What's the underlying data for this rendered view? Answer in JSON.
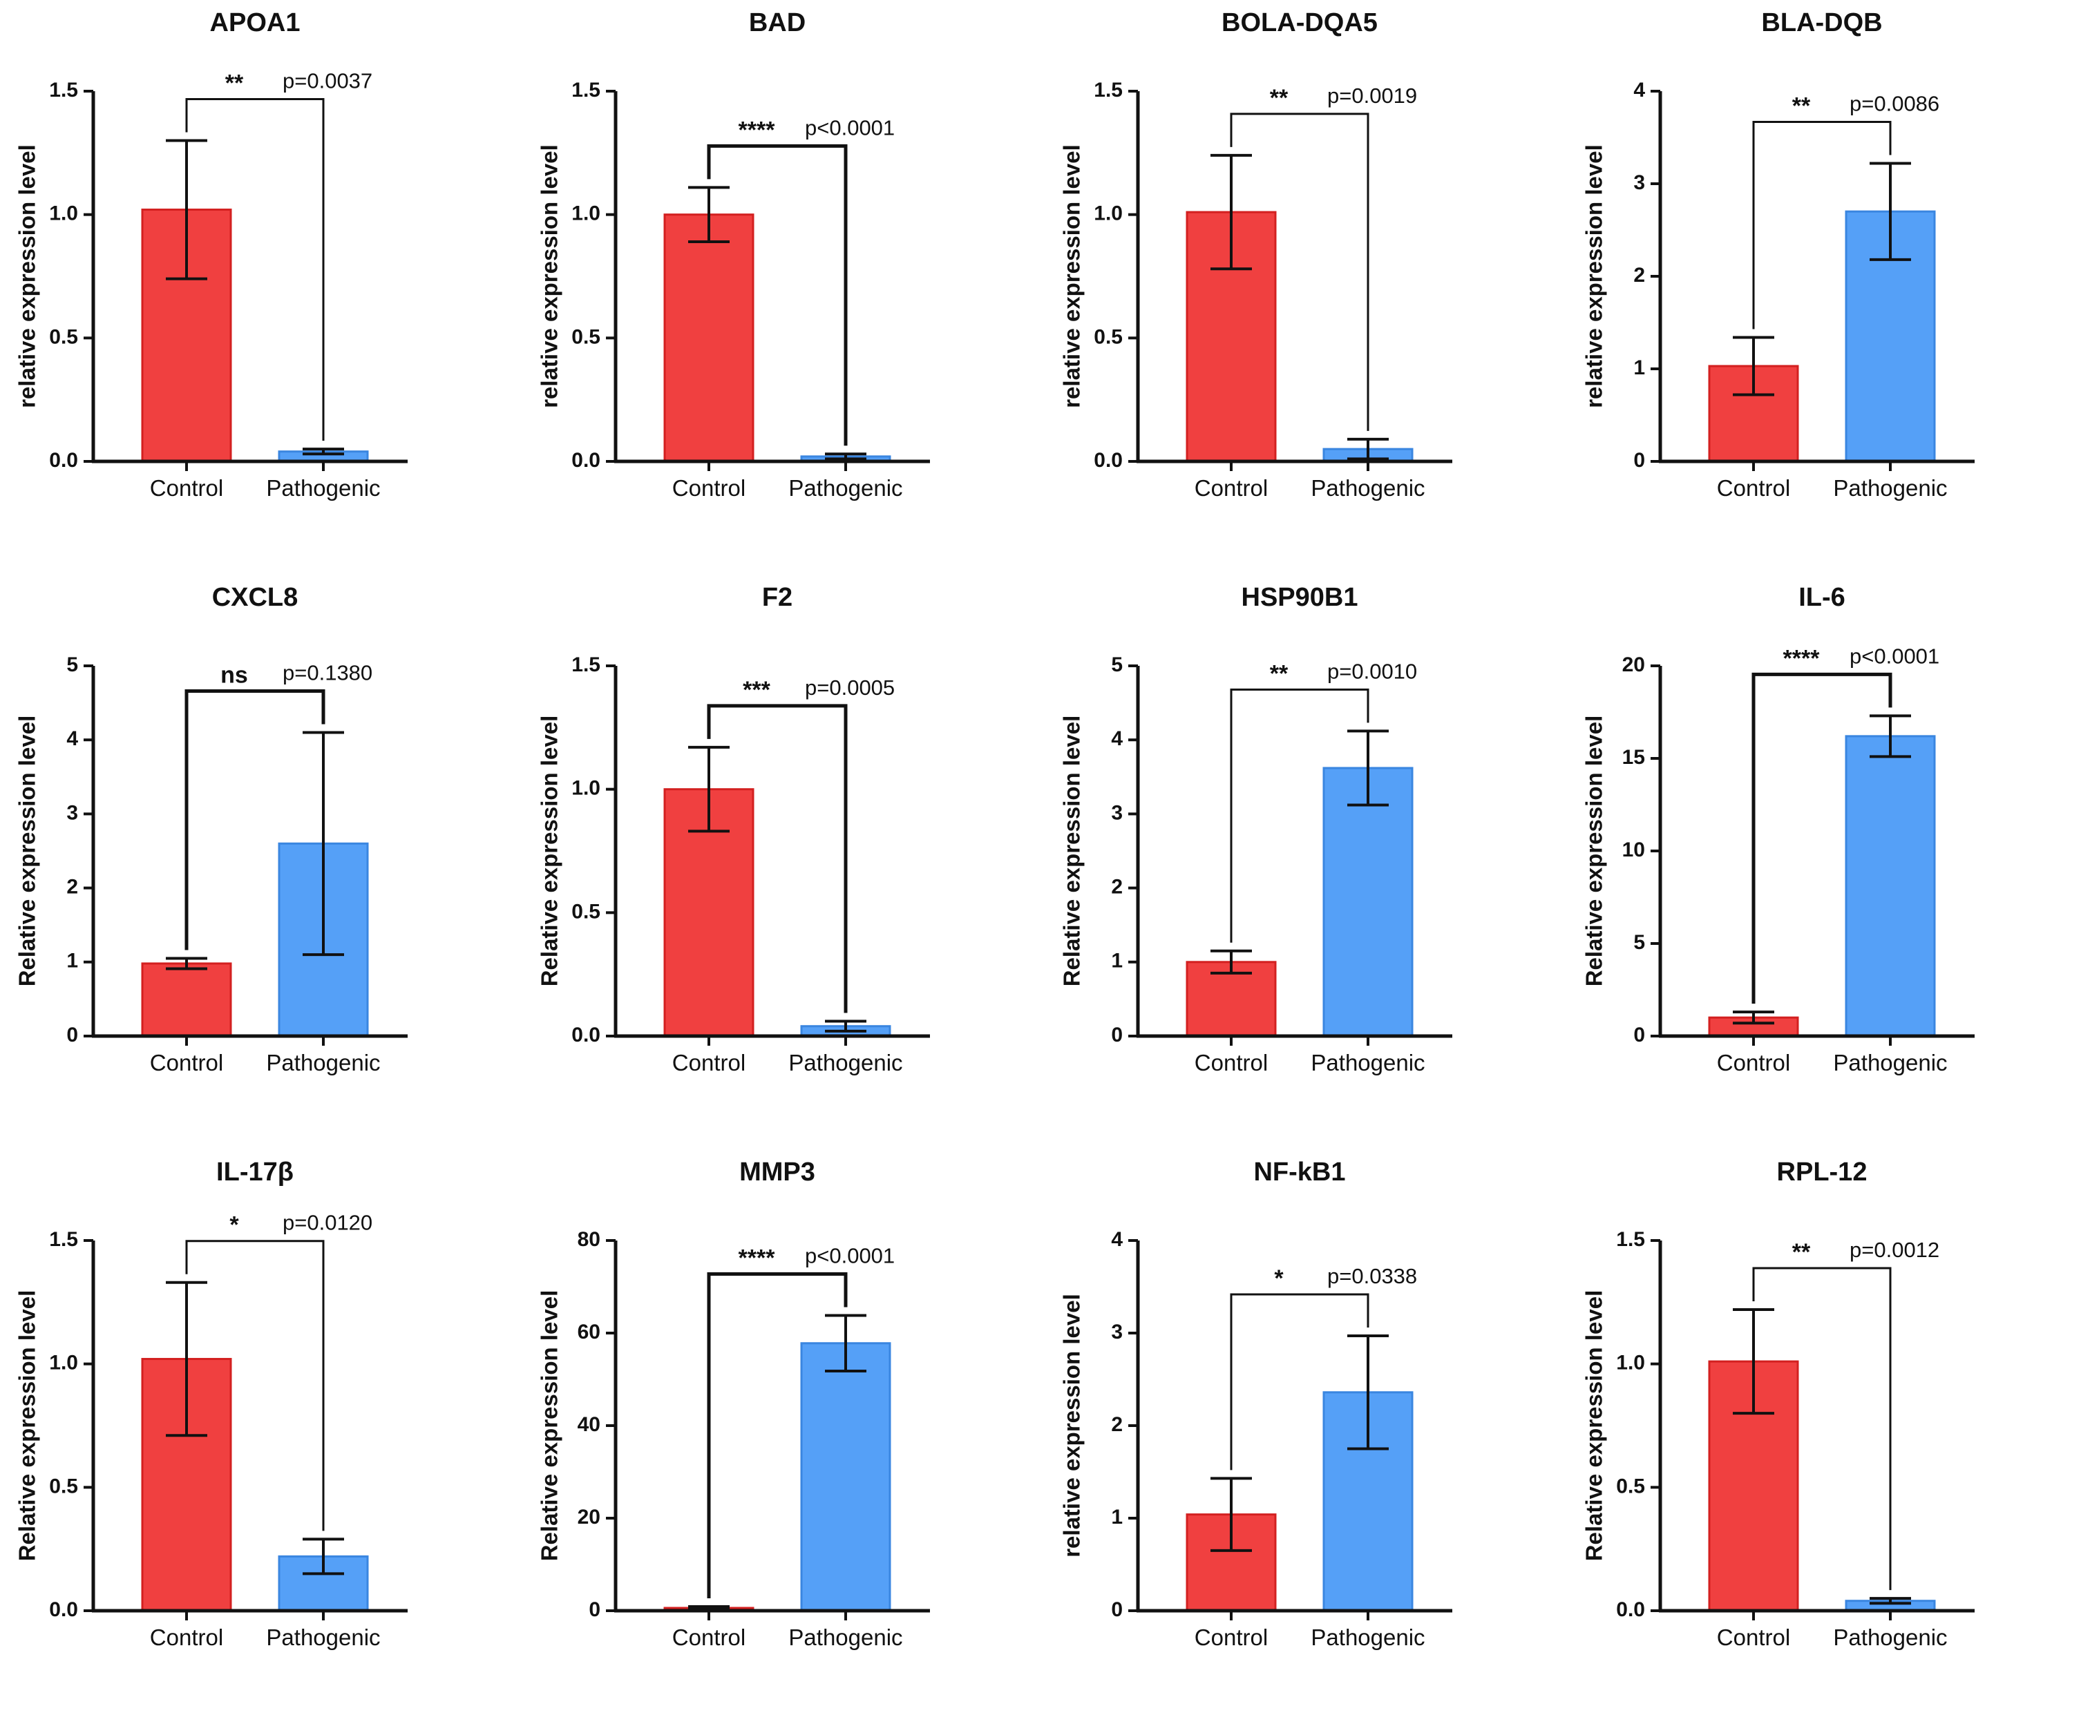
{
  "colors": {
    "control": "#f04040",
    "control_edge": "#d32020",
    "pathogenic": "#55a0f7",
    "pathogenic_edge": "#3a86e0"
  },
  "chart_data": [
    {
      "type": "bar",
      "title": "APOA1",
      "ylabel": "relative expression level",
      "categories": [
        "Control",
        "Pathogenic"
      ],
      "values": [
        1.02,
        0.04
      ],
      "errors": [
        0.28,
        0.01
      ],
      "ylim": [
        0,
        1.5
      ],
      "yticks": [
        "0.0",
        "0.5",
        "1.0",
        "1.5"
      ],
      "significance": "**",
      "p_value": "p=0.0037"
    },
    {
      "type": "bar",
      "title": "BAD",
      "ylabel": "relative expression level",
      "categories": [
        "Control",
        "Pathogenic"
      ],
      "values": [
        1.0,
        0.02
      ],
      "errors": [
        0.11,
        0.01
      ],
      "ylim": [
        0,
        1.5
      ],
      "yticks": [
        "0.0",
        "0.5",
        "1.0",
        "1.5"
      ],
      "significance": "****",
      "p_value": "p<0.0001"
    },
    {
      "type": "bar",
      "title": "BOLA-DQA5",
      "ylabel": "relative expression level",
      "categories": [
        "Control",
        "Pathogenic"
      ],
      "values": [
        1.01,
        0.05
      ],
      "errors": [
        0.23,
        0.04
      ],
      "ylim": [
        0,
        1.5
      ],
      "yticks": [
        "0.0",
        "0.5",
        "1.0",
        "1.5"
      ],
      "significance": "**",
      "p_value": "p=0.0019"
    },
    {
      "type": "bar",
      "title": "BLA-DQB",
      "ylabel": "relative expression level",
      "categories": [
        "Control",
        "Pathogenic"
      ],
      "values": [
        1.03,
        2.7
      ],
      "errors": [
        0.31,
        0.52
      ],
      "ylim": [
        0,
        4
      ],
      "yticks": [
        "0",
        "1",
        "2",
        "3",
        "4"
      ],
      "significance": "**",
      "p_value": "p=0.0086"
    },
    {
      "type": "bar",
      "title": "CXCL8",
      "ylabel": "Relative expression level",
      "categories": [
        "Control",
        "Pathogenic"
      ],
      "values": [
        0.98,
        2.6
      ],
      "errors": [
        0.07,
        1.5
      ],
      "ylim": [
        0,
        5
      ],
      "yticks": [
        "0",
        "1",
        "2",
        "3",
        "4",
        "5"
      ],
      "significance": "ns",
      "p_value": "p=0.1380"
    },
    {
      "type": "bar",
      "title": "F2",
      "ylabel": "Relative expression level",
      "categories": [
        "Control",
        "Pathogenic"
      ],
      "values": [
        1.0,
        0.04
      ],
      "errors": [
        0.17,
        0.02
      ],
      "ylim": [
        0,
        1.5
      ],
      "yticks": [
        "0.0",
        "0.5",
        "1.0",
        "1.5"
      ],
      "significance": "***",
      "p_value": "p=0.0005"
    },
    {
      "type": "bar",
      "title": "HSP90B1",
      "ylabel": "Relative expression level",
      "categories": [
        "Control",
        "Pathogenic"
      ],
      "values": [
        1.0,
        3.62
      ],
      "errors": [
        0.15,
        0.5
      ],
      "ylim": [
        0,
        5
      ],
      "yticks": [
        "0",
        "1",
        "2",
        "3",
        "4",
        "5"
      ],
      "significance": "**",
      "p_value": "p=0.0010"
    },
    {
      "type": "bar",
      "title": "IL-6",
      "ylabel": "Relative expression level",
      "categories": [
        "Control",
        "Pathogenic"
      ],
      "values": [
        1.0,
        16.2
      ],
      "errors": [
        0.3,
        1.1
      ],
      "ylim": [
        0,
        20
      ],
      "yticks": [
        "0",
        "5",
        "10",
        "15",
        "20"
      ],
      "significance": "****",
      "p_value": "p<0.0001"
    },
    {
      "type": "bar",
      "title": "IL-17β",
      "ylabel": "Relative expression level",
      "categories": [
        "Control",
        "Pathogenic"
      ],
      "values": [
        1.02,
        0.22
      ],
      "errors": [
        0.31,
        0.07
      ],
      "ylim": [
        0,
        1.5
      ],
      "yticks": [
        "0.0",
        "0.5",
        "1.0",
        "1.5"
      ],
      "significance": "*",
      "p_value": "p=0.0120"
    },
    {
      "type": "bar",
      "title": "MMP3",
      "ylabel": "Relative expression level",
      "categories": [
        "Control",
        "Pathogenic"
      ],
      "values": [
        0.6,
        57.8
      ],
      "errors": [
        0.3,
        6.0
      ],
      "ylim": [
        0,
        80
      ],
      "yticks": [
        "0",
        "20",
        "40",
        "60",
        "80"
      ],
      "significance": "****",
      "p_value": "p<0.0001"
    },
    {
      "type": "bar",
      "title": "NF-kB1",
      "ylabel": "relative expression level",
      "categories": [
        "Control",
        "Pathogenic"
      ],
      "values": [
        1.04,
        2.36
      ],
      "errors": [
        0.39,
        0.61
      ],
      "ylim": [
        0,
        4
      ],
      "yticks": [
        "0",
        "1",
        "2",
        "3",
        "4"
      ],
      "significance": "*",
      "p_value": "p=0.0338"
    },
    {
      "type": "bar",
      "title": "RPL-12",
      "ylabel": "Relative expression level",
      "categories": [
        "Control",
        "Pathogenic"
      ],
      "values": [
        1.01,
        0.04
      ],
      "errors": [
        0.21,
        0.01
      ],
      "ylim": [
        0,
        1.5
      ],
      "yticks": [
        "0.0",
        "0.5",
        "1.0",
        "1.5"
      ],
      "significance": "**",
      "p_value": "p=0.0012"
    }
  ]
}
